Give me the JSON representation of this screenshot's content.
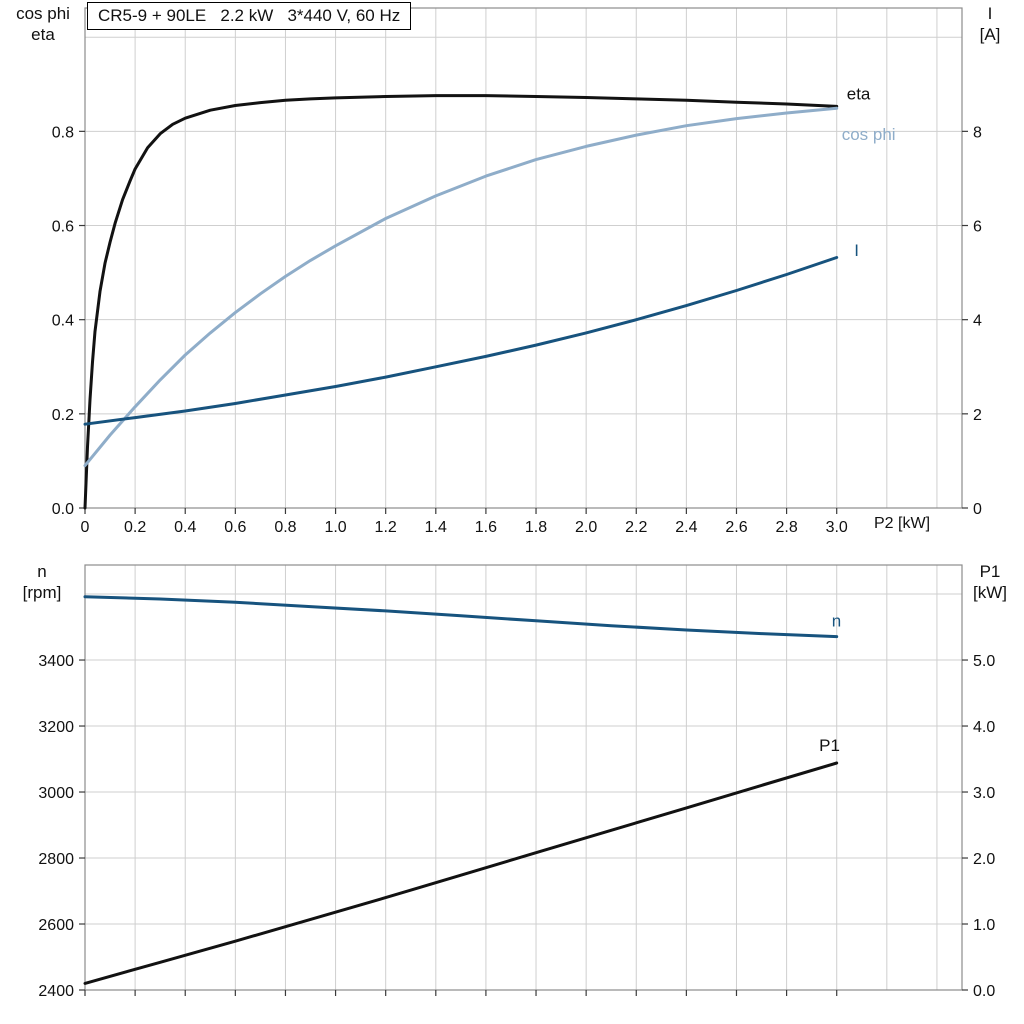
{
  "title_box": "CR5-9 + 90LE   2.2 kW   3*440 V, 60 Hz",
  "colors": {
    "black": "#121212",
    "dark_blue": "#17537e",
    "light_blue": "#8fadc9",
    "grid": "#cfcfcf",
    "frame": "#8c8c8c",
    "tick": "#3a3a3a",
    "text": "#111111",
    "background": "#ffffff"
  },
  "chart_data": [
    {
      "type": "line",
      "panel": "top",
      "title": "CR5-9 + 90LE   2.2 kW   3*440 V, 60 Hz",
      "x_axis": {
        "title": "P2 [kW]",
        "lim": [
          0,
          3.5
        ],
        "grid": [
          0.2,
          0.4,
          0.6,
          0.8,
          1.0,
          1.2,
          1.4,
          1.6,
          1.8,
          2.0,
          2.2,
          2.4,
          2.6,
          2.8,
          3.0,
          3.2,
          3.4
        ],
        "show_tick_labels": true,
        "ticks": [
          [
            0,
            "0"
          ],
          [
            0.2,
            "0.2"
          ],
          [
            0.4,
            "0.4"
          ],
          [
            0.6,
            "0.6"
          ],
          [
            0.8,
            "0.8"
          ],
          [
            1.0,
            "1.0"
          ],
          [
            1.2,
            "1.2"
          ],
          [
            1.4,
            "1.4"
          ],
          [
            1.6,
            "1.6"
          ],
          [
            1.8,
            "1.8"
          ],
          [
            2.0,
            "2.0"
          ],
          [
            2.2,
            "2.2"
          ],
          [
            2.4,
            "2.4"
          ],
          [
            2.6,
            "2.6"
          ],
          [
            2.8,
            "2.8"
          ],
          [
            3.0,
            "3.0"
          ]
        ]
      },
      "y_left": {
        "title": [
          "cos phi",
          "eta"
        ],
        "lim": [
          0,
          1.062
        ],
        "grid": [
          0.2,
          0.4,
          0.6,
          0.8,
          1.0
        ],
        "ticks": [
          [
            0,
            "0.0"
          ],
          [
            0.2,
            "0.2"
          ],
          [
            0.4,
            "0.4"
          ],
          [
            0.6,
            "0.6"
          ],
          [
            0.8,
            "0.8"
          ]
        ]
      },
      "y_right": {
        "title": [
          "I",
          "[A]"
        ],
        "lim": [
          0,
          10.62
        ],
        "grid": [],
        "ticks": [
          [
            0,
            "0"
          ],
          [
            2,
            "2"
          ],
          [
            4,
            "4"
          ],
          [
            6,
            "6"
          ],
          [
            8,
            "8"
          ]
        ]
      },
      "series": [
        {
          "name": "eta",
          "axis": "left",
          "color": "black",
          "label": "eta",
          "label_at": [
            3.04,
            0.868
          ],
          "points": [
            [
              0,
              0
            ],
            [
              0.01,
              0.13
            ],
            [
              0.02,
              0.23
            ],
            [
              0.03,
              0.31
            ],
            [
              0.04,
              0.375
            ],
            [
              0.06,
              0.46
            ],
            [
              0.08,
              0.52
            ],
            [
              0.1,
              0.565
            ],
            [
              0.12,
              0.605
            ],
            [
              0.15,
              0.655
            ],
            [
              0.18,
              0.695
            ],
            [
              0.2,
              0.72
            ],
            [
              0.25,
              0.765
            ],
            [
              0.3,
              0.795
            ],
            [
              0.35,
              0.815
            ],
            [
              0.4,
              0.828
            ],
            [
              0.5,
              0.845
            ],
            [
              0.6,
              0.855
            ],
            [
              0.7,
              0.861
            ],
            [
              0.8,
              0.866
            ],
            [
              0.9,
              0.869
            ],
            [
              1,
              0.871
            ],
            [
              1.2,
              0.874
            ],
            [
              1.4,
              0.876
            ],
            [
              1.6,
              0.876
            ],
            [
              1.8,
              0.874
            ],
            [
              2,
              0.872
            ],
            [
              2.2,
              0.869
            ],
            [
              2.4,
              0.866
            ],
            [
              2.6,
              0.862
            ],
            [
              2.8,
              0.858
            ],
            [
              3,
              0.853
            ]
          ]
        },
        {
          "name": "cos phi",
          "axis": "left",
          "color": "light_blue",
          "label": "cos phi",
          "label_at": [
            3.02,
            0.782
          ],
          "points": [
            [
              0,
              0.09
            ],
            [
              0.1,
              0.155
            ],
            [
              0.2,
              0.215
            ],
            [
              0.3,
              0.272
            ],
            [
              0.4,
              0.325
            ],
            [
              0.5,
              0.372
            ],
            [
              0.6,
              0.415
            ],
            [
              0.7,
              0.455
            ],
            [
              0.8,
              0.492
            ],
            [
              0.9,
              0.526
            ],
            [
              1,
              0.557
            ],
            [
              1.2,
              0.615
            ],
            [
              1.4,
              0.663
            ],
            [
              1.6,
              0.705
            ],
            [
              1.8,
              0.74
            ],
            [
              2,
              0.768
            ],
            [
              2.2,
              0.792
            ],
            [
              2.4,
              0.812
            ],
            [
              2.6,
              0.827
            ],
            [
              2.8,
              0.839
            ],
            [
              3,
              0.849
            ]
          ]
        },
        {
          "name": "I",
          "axis": "right",
          "color": "dark_blue",
          "label": "I",
          "label_at": [
            3.07,
            5.35
          ],
          "points": [
            [
              0,
              1.78
            ],
            [
              0.2,
              1.92
            ],
            [
              0.4,
              2.06
            ],
            [
              0.6,
              2.22
            ],
            [
              0.8,
              2.4
            ],
            [
              1,
              2.58
            ],
            [
              1.2,
              2.78
            ],
            [
              1.4,
              3
            ],
            [
              1.6,
              3.22
            ],
            [
              1.8,
              3.46
            ],
            [
              2,
              3.72
            ],
            [
              2.2,
              4
            ],
            [
              2.4,
              4.3
            ],
            [
              2.6,
              4.62
            ],
            [
              2.8,
              4.96
            ],
            [
              3,
              5.32
            ]
          ]
        }
      ]
    },
    {
      "type": "line",
      "panel": "bottom",
      "x_axis": {
        "title": "",
        "lim": [
          0,
          3.5
        ],
        "grid": [
          0.2,
          0.4,
          0.6,
          0.8,
          1.0,
          1.2,
          1.4,
          1.6,
          1.8,
          2.0,
          2.2,
          2.4,
          2.6,
          2.8,
          3.0,
          3.2,
          3.4
        ],
        "show_tick_labels": false,
        "ticks": [
          [
            0,
            ""
          ],
          [
            0.2,
            ""
          ],
          [
            0.4,
            ""
          ],
          [
            0.6,
            ""
          ],
          [
            0.8,
            ""
          ],
          [
            1.0,
            ""
          ],
          [
            1.2,
            ""
          ],
          [
            1.4,
            ""
          ],
          [
            1.6,
            ""
          ],
          [
            1.8,
            ""
          ],
          [
            2.0,
            ""
          ],
          [
            2.2,
            ""
          ],
          [
            2.4,
            ""
          ],
          [
            2.6,
            ""
          ],
          [
            2.8,
            ""
          ],
          [
            3.0,
            ""
          ]
        ]
      },
      "y_left": {
        "title": [
          "n",
          "[rpm]"
        ],
        "lim": [
          2400,
          3688
        ],
        "grid": [
          2600,
          2800,
          3000,
          3200,
          3400,
          3600
        ],
        "ticks": [
          [
            3400,
            "3400"
          ],
          [
            3200,
            "3200"
          ],
          [
            3000,
            "3000"
          ],
          [
            2800,
            "2800"
          ],
          [
            2600,
            "2600"
          ],
          [
            2400,
            "2400"
          ]
        ]
      },
      "y_right": {
        "title": [
          "P1",
          "[kW]"
        ],
        "lim": [
          0,
          6.44
        ],
        "grid": [],
        "ticks": [
          [
            5,
            "5.0"
          ],
          [
            4,
            "4.0"
          ],
          [
            3,
            "3.0"
          ],
          [
            2,
            "2.0"
          ],
          [
            1,
            "1.0"
          ],
          [
            0,
            "0.0"
          ]
        ]
      },
      "series": [
        {
          "name": "n",
          "axis": "left",
          "color": "dark_blue",
          "label": "n",
          "label_at": [
            2.98,
            3502
          ],
          "points": [
            [
              0,
              3592
            ],
            [
              0.3,
              3585
            ],
            [
              0.6,
              3575
            ],
            [
              0.9,
              3562
            ],
            [
              1.2,
              3549
            ],
            [
              1.5,
              3534
            ],
            [
              1.8,
              3519
            ],
            [
              2.1,
              3504
            ],
            [
              2.4,
              3491
            ],
            [
              2.7,
              3480
            ],
            [
              3,
              3471
            ]
          ]
        },
        {
          "name": "P1",
          "axis": "right",
          "color": "black",
          "label": "P1",
          "label_at": [
            2.93,
            3.62
          ],
          "points": [
            [
              0,
              0.1
            ],
            [
              0.3,
              0.42
            ],
            [
              0.6,
              0.74
            ],
            [
              0.9,
              1.07
            ],
            [
              1.2,
              1.4
            ],
            [
              1.5,
              1.74
            ],
            [
              1.8,
              2.08
            ],
            [
              2.1,
              2.42
            ],
            [
              2.4,
              2.76
            ],
            [
              2.7,
              3.1
            ],
            [
              3,
              3.44
            ]
          ]
        }
      ]
    }
  ]
}
